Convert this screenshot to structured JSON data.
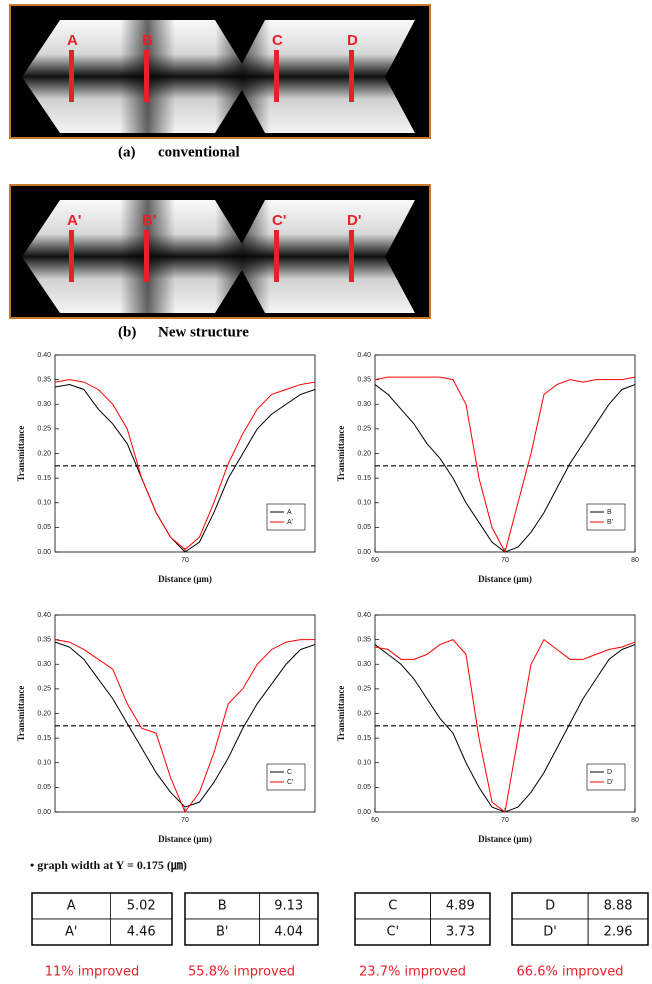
{
  "figures": [
    {
      "markers": [
        "A",
        "B",
        "C",
        "D"
      ],
      "caption_label": "(a)",
      "caption": "conventional"
    },
    {
      "markers": [
        "A'",
        "B'",
        "C'",
        "D'"
      ],
      "caption_label": "(b)",
      "caption": "New structure"
    }
  ],
  "chart_data": [
    {
      "type": "line",
      "ylabel": "Transmittance",
      "xlabel": "Distance (μm)",
      "x": [
        61,
        62,
        63,
        64,
        65,
        66,
        67,
        68,
        69,
        70,
        71,
        72,
        73,
        74,
        75,
        76,
        77,
        78,
        79
      ],
      "xlim": [
        61,
        79
      ],
      "xticks": [
        70
      ],
      "ylim": [
        0,
        0.4
      ],
      "yticks": [
        {
          "value": 0,
          "label": "0.00"
        },
        {
          "value": 0.05,
          "label": "0.05"
        },
        {
          "value": 0.1,
          "label": "0.10"
        },
        {
          "value": 0.15,
          "label": "0.15"
        },
        {
          "value": 0.2,
          "label": "0.20"
        },
        {
          "value": 0.25,
          "label": "0.25"
        },
        {
          "value": 0.3,
          "label": "0.30"
        },
        {
          "value": 0.35,
          "label": "0.35"
        },
        {
          "value": 0.4,
          "label": "0.40"
        }
      ],
      "threshold": 0.175,
      "series": [
        {
          "name": "A",
          "color": "#000000",
          "values": [
            0.335,
            0.34,
            0.33,
            0.29,
            0.26,
            0.22,
            0.15,
            0.08,
            0.03,
            0.0,
            0.02,
            0.08,
            0.15,
            0.2,
            0.25,
            0.28,
            0.3,
            0.32,
            0.33
          ]
        },
        {
          "name": "A'",
          "color": "#ff0000",
          "values": [
            0.345,
            0.35,
            0.345,
            0.33,
            0.3,
            0.25,
            0.15,
            0.08,
            0.03,
            0.005,
            0.03,
            0.1,
            0.18,
            0.24,
            0.29,
            0.32,
            0.33,
            0.34,
            0.345
          ]
        }
      ]
    },
    {
      "type": "line",
      "ylabel": "Transmittance",
      "xlabel": "Distance (μm)",
      "x": [
        60,
        61,
        62,
        63,
        64,
        65,
        66,
        67,
        68,
        69,
        70,
        71,
        72,
        73,
        74,
        75,
        76,
        77,
        78,
        79,
        80
      ],
      "xlim": [
        60,
        80
      ],
      "xticks": [
        60,
        70,
        80
      ],
      "ylim": [
        0,
        0.4
      ],
      "yticks": [
        {
          "value": 0,
          "label": "0.00"
        },
        {
          "value": 0.05,
          "label": "0.05"
        },
        {
          "value": 0.1,
          "label": "0.10"
        },
        {
          "value": 0.15,
          "label": "0.15"
        },
        {
          "value": 0.2,
          "label": "0.20"
        },
        {
          "value": 0.25,
          "label": "0.25"
        },
        {
          "value": 0.3,
          "label": "0.30"
        },
        {
          "value": 0.35,
          "label": "0.35"
        },
        {
          "value": 0.4,
          "label": "0.40"
        }
      ],
      "threshold": 0.175,
      "series": [
        {
          "name": "B",
          "color": "#000000",
          "values": [
            0.34,
            0.32,
            0.29,
            0.26,
            0.22,
            0.19,
            0.15,
            0.1,
            0.06,
            0.02,
            0.0,
            0.01,
            0.04,
            0.08,
            0.13,
            0.18,
            0.22,
            0.26,
            0.3,
            0.33,
            0.34
          ]
        },
        {
          "name": "B'",
          "color": "#ff0000",
          "values": [
            0.35,
            0.355,
            0.355,
            0.355,
            0.355,
            0.355,
            0.35,
            0.3,
            0.15,
            0.05,
            0.0,
            0.1,
            0.2,
            0.32,
            0.34,
            0.35,
            0.345,
            0.35,
            0.35,
            0.35,
            0.355
          ]
        }
      ]
    },
    {
      "type": "line",
      "ylabel": "Transmittance",
      "xlabel": "Distance (μm)",
      "x": [
        61,
        62,
        63,
        64,
        65,
        66,
        67,
        68,
        69,
        70,
        71,
        72,
        73,
        74,
        75,
        76,
        77,
        78,
        79
      ],
      "xlim": [
        61,
        79
      ],
      "xticks": [
        70
      ],
      "ylim": [
        0,
        0.4
      ],
      "yticks": [
        {
          "value": 0,
          "label": "0.00"
        },
        {
          "value": 0.05,
          "label": "0.05"
        },
        {
          "value": 0.1,
          "label": "0.10"
        },
        {
          "value": 0.15,
          "label": "0.15"
        },
        {
          "value": 0.2,
          "label": "0.20"
        },
        {
          "value": 0.25,
          "label": "0.25"
        },
        {
          "value": 0.3,
          "label": "0.30"
        },
        {
          "value": 0.35,
          "label": "0.35"
        },
        {
          "value": 0.4,
          "label": "0.40"
        }
      ],
      "threshold": 0.175,
      "series": [
        {
          "name": "C",
          "color": "#000000",
          "values": [
            0.345,
            0.335,
            0.31,
            0.27,
            0.23,
            0.18,
            0.13,
            0.08,
            0.04,
            0.01,
            0.02,
            0.06,
            0.11,
            0.17,
            0.22,
            0.26,
            0.3,
            0.33,
            0.34
          ]
        },
        {
          "name": "C'",
          "color": "#ff0000",
          "values": [
            0.35,
            0.345,
            0.33,
            0.31,
            0.29,
            0.22,
            0.17,
            0.16,
            0.07,
            0.0,
            0.04,
            0.12,
            0.22,
            0.25,
            0.3,
            0.33,
            0.345,
            0.35,
            0.35
          ]
        }
      ]
    },
    {
      "type": "line",
      "ylabel": "Transmittance",
      "xlabel": "Distance (μm)",
      "x": [
        60,
        61,
        62,
        63,
        64,
        65,
        66,
        67,
        68,
        69,
        70,
        71,
        72,
        73,
        74,
        75,
        76,
        77,
        78,
        79,
        80
      ],
      "xlim": [
        60,
        80
      ],
      "xticks": [
        60,
        70,
        80
      ],
      "ylim": [
        0,
        0.4
      ],
      "yticks": [
        {
          "value": 0,
          "label": "0.00"
        },
        {
          "value": 0.05,
          "label": "0.05"
        },
        {
          "value": 0.1,
          "label": "0.10"
        },
        {
          "value": 0.15,
          "label": "0.15"
        },
        {
          "value": 0.2,
          "label": "0.20"
        },
        {
          "value": 0.25,
          "label": "0.25"
        },
        {
          "value": 0.3,
          "label": "0.30"
        },
        {
          "value": 0.35,
          "label": "0.35"
        },
        {
          "value": 0.4,
          "label": "0.40"
        }
      ],
      "threshold": 0.175,
      "series": [
        {
          "name": "D",
          "color": "#000000",
          "values": [
            0.34,
            0.32,
            0.3,
            0.27,
            0.23,
            0.19,
            0.16,
            0.1,
            0.05,
            0.01,
            0.0,
            0.01,
            0.04,
            0.08,
            0.13,
            0.18,
            0.23,
            0.27,
            0.31,
            0.33,
            0.34
          ]
        },
        {
          "name": "D'",
          "color": "#ff0000",
          "values": [
            0.335,
            0.33,
            0.31,
            0.31,
            0.32,
            0.34,
            0.35,
            0.32,
            0.15,
            0.02,
            0.0,
            0.15,
            0.3,
            0.35,
            0.33,
            0.31,
            0.31,
            0.32,
            0.33,
            0.335,
            0.345
          ]
        }
      ]
    }
  ],
  "note": "• graph width at Y = 0.175 (㎛)",
  "tables": [
    {
      "rows": [
        [
          "A",
          "5.02"
        ],
        [
          "A'",
          "4.46"
        ]
      ],
      "improvement": "11% improved"
    },
    {
      "rows": [
        [
          "B",
          "9.13"
        ],
        [
          "B'",
          "4.04"
        ]
      ],
      "improvement": "55.8% improved"
    },
    {
      "rows": [
        [
          "C",
          "4.89"
        ],
        [
          "C'",
          "3.73"
        ]
      ],
      "improvement": "23.7% improved"
    },
    {
      "rows": [
        [
          "D",
          "8.88"
        ],
        [
          "D'",
          "2.96"
        ]
      ],
      "improvement": "66.6% improved"
    }
  ]
}
